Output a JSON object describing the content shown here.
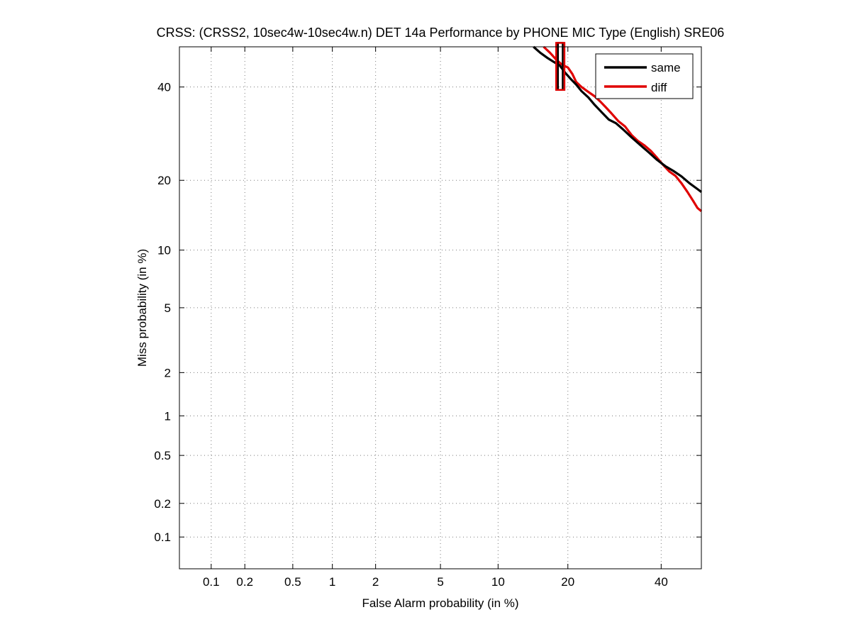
{
  "chart_data": {
    "type": "line",
    "title": "CRSS: (CRSS2, 10sec4w-10sec4w.n) DET 14a Performance by PHONE MIC Type (English) SRE06",
    "xlabel": "False Alarm probability (in %)",
    "ylabel": "Miss probability (in %)",
    "x_scale": "normal-deviate (probit)",
    "y_scale": "normal-deviate (probit)",
    "xlim": [
      0.05,
      50
    ],
    "ylim": [
      0.05,
      50
    ],
    "x_ticks": [
      0.1,
      0.2,
      0.5,
      1,
      2,
      5,
      10,
      20,
      40
    ],
    "x_tick_labels": [
      "0.1",
      "0.2",
      "0.5",
      "1",
      "2",
      "5",
      "10",
      "20",
      "40"
    ],
    "y_ticks": [
      0.1,
      0.2,
      0.5,
      1,
      2,
      5,
      10,
      20,
      40
    ],
    "y_tick_labels": [
      "0.1",
      "0.2",
      "0.5",
      "1",
      "2",
      "5",
      "10",
      "20",
      "40"
    ],
    "grid": true,
    "legend_position": "top-right",
    "series": [
      {
        "name": "same",
        "color": "#000000",
        "points": [
          [
            14.5,
            50
          ],
          [
            15.5,
            48.5
          ],
          [
            16.5,
            47.3
          ],
          [
            17.5,
            46.3
          ],
          [
            18.6,
            45.3
          ],
          [
            19.6,
            43.4
          ],
          [
            20.5,
            42.0
          ],
          [
            21.5,
            40.6
          ],
          [
            22.5,
            39.0
          ],
          [
            23.8,
            37.5
          ],
          [
            25.0,
            35.8
          ],
          [
            26.5,
            34.0
          ],
          [
            28.0,
            32.3
          ],
          [
            29.5,
            31.5
          ],
          [
            31.0,
            30.2
          ],
          [
            33.0,
            28.4
          ],
          [
            35.0,
            26.8
          ],
          [
            37.0,
            25.3
          ],
          [
            39.0,
            23.8
          ],
          [
            41.0,
            22.6
          ],
          [
            43.0,
            21.7
          ],
          [
            45.0,
            20.7
          ],
          [
            47.0,
            19.5
          ],
          [
            49.0,
            18.5
          ],
          [
            50.0,
            18.0
          ]
        ],
        "marker": {
          "x": 18.7,
          "y": 45.6,
          "shape": "rectangle",
          "x_range": [
            18.3,
            19.1
          ],
          "y_range": [
            39.3,
            51
          ]
        }
      },
      {
        "name": "diff",
        "color": "#e00000",
        "points": [
          [
            16.0,
            50
          ],
          [
            17.0,
            48.5
          ],
          [
            18.0,
            46.8
          ],
          [
            19.0,
            45.5
          ],
          [
            20.0,
            44.8
          ],
          [
            20.8,
            43.2
          ],
          [
            21.5,
            41.2
          ],
          [
            22.5,
            40.0
          ],
          [
            23.8,
            38.8
          ],
          [
            25.0,
            37.8
          ],
          [
            26.2,
            36.5
          ],
          [
            27.3,
            35.2
          ],
          [
            28.5,
            33.8
          ],
          [
            30.0,
            32.0
          ],
          [
            31.5,
            30.8
          ],
          [
            33.0,
            28.9
          ],
          [
            34.5,
            27.6
          ],
          [
            36.0,
            26.7
          ],
          [
            37.5,
            25.6
          ],
          [
            39.0,
            24.2
          ],
          [
            40.5,
            22.8
          ],
          [
            42.0,
            21.6
          ],
          [
            43.5,
            20.8
          ],
          [
            45.0,
            19.5
          ],
          [
            46.5,
            18.0
          ],
          [
            48.0,
            16.5
          ],
          [
            49.0,
            15.5
          ],
          [
            50.0,
            15.0
          ]
        ],
        "marker": {
          "x": 18.7,
          "y": 43.5,
          "shape": "rectangle",
          "x_range": [
            18.0,
            19.4
          ],
          "y_range": [
            39.3,
            51
          ]
        }
      }
    ]
  }
}
